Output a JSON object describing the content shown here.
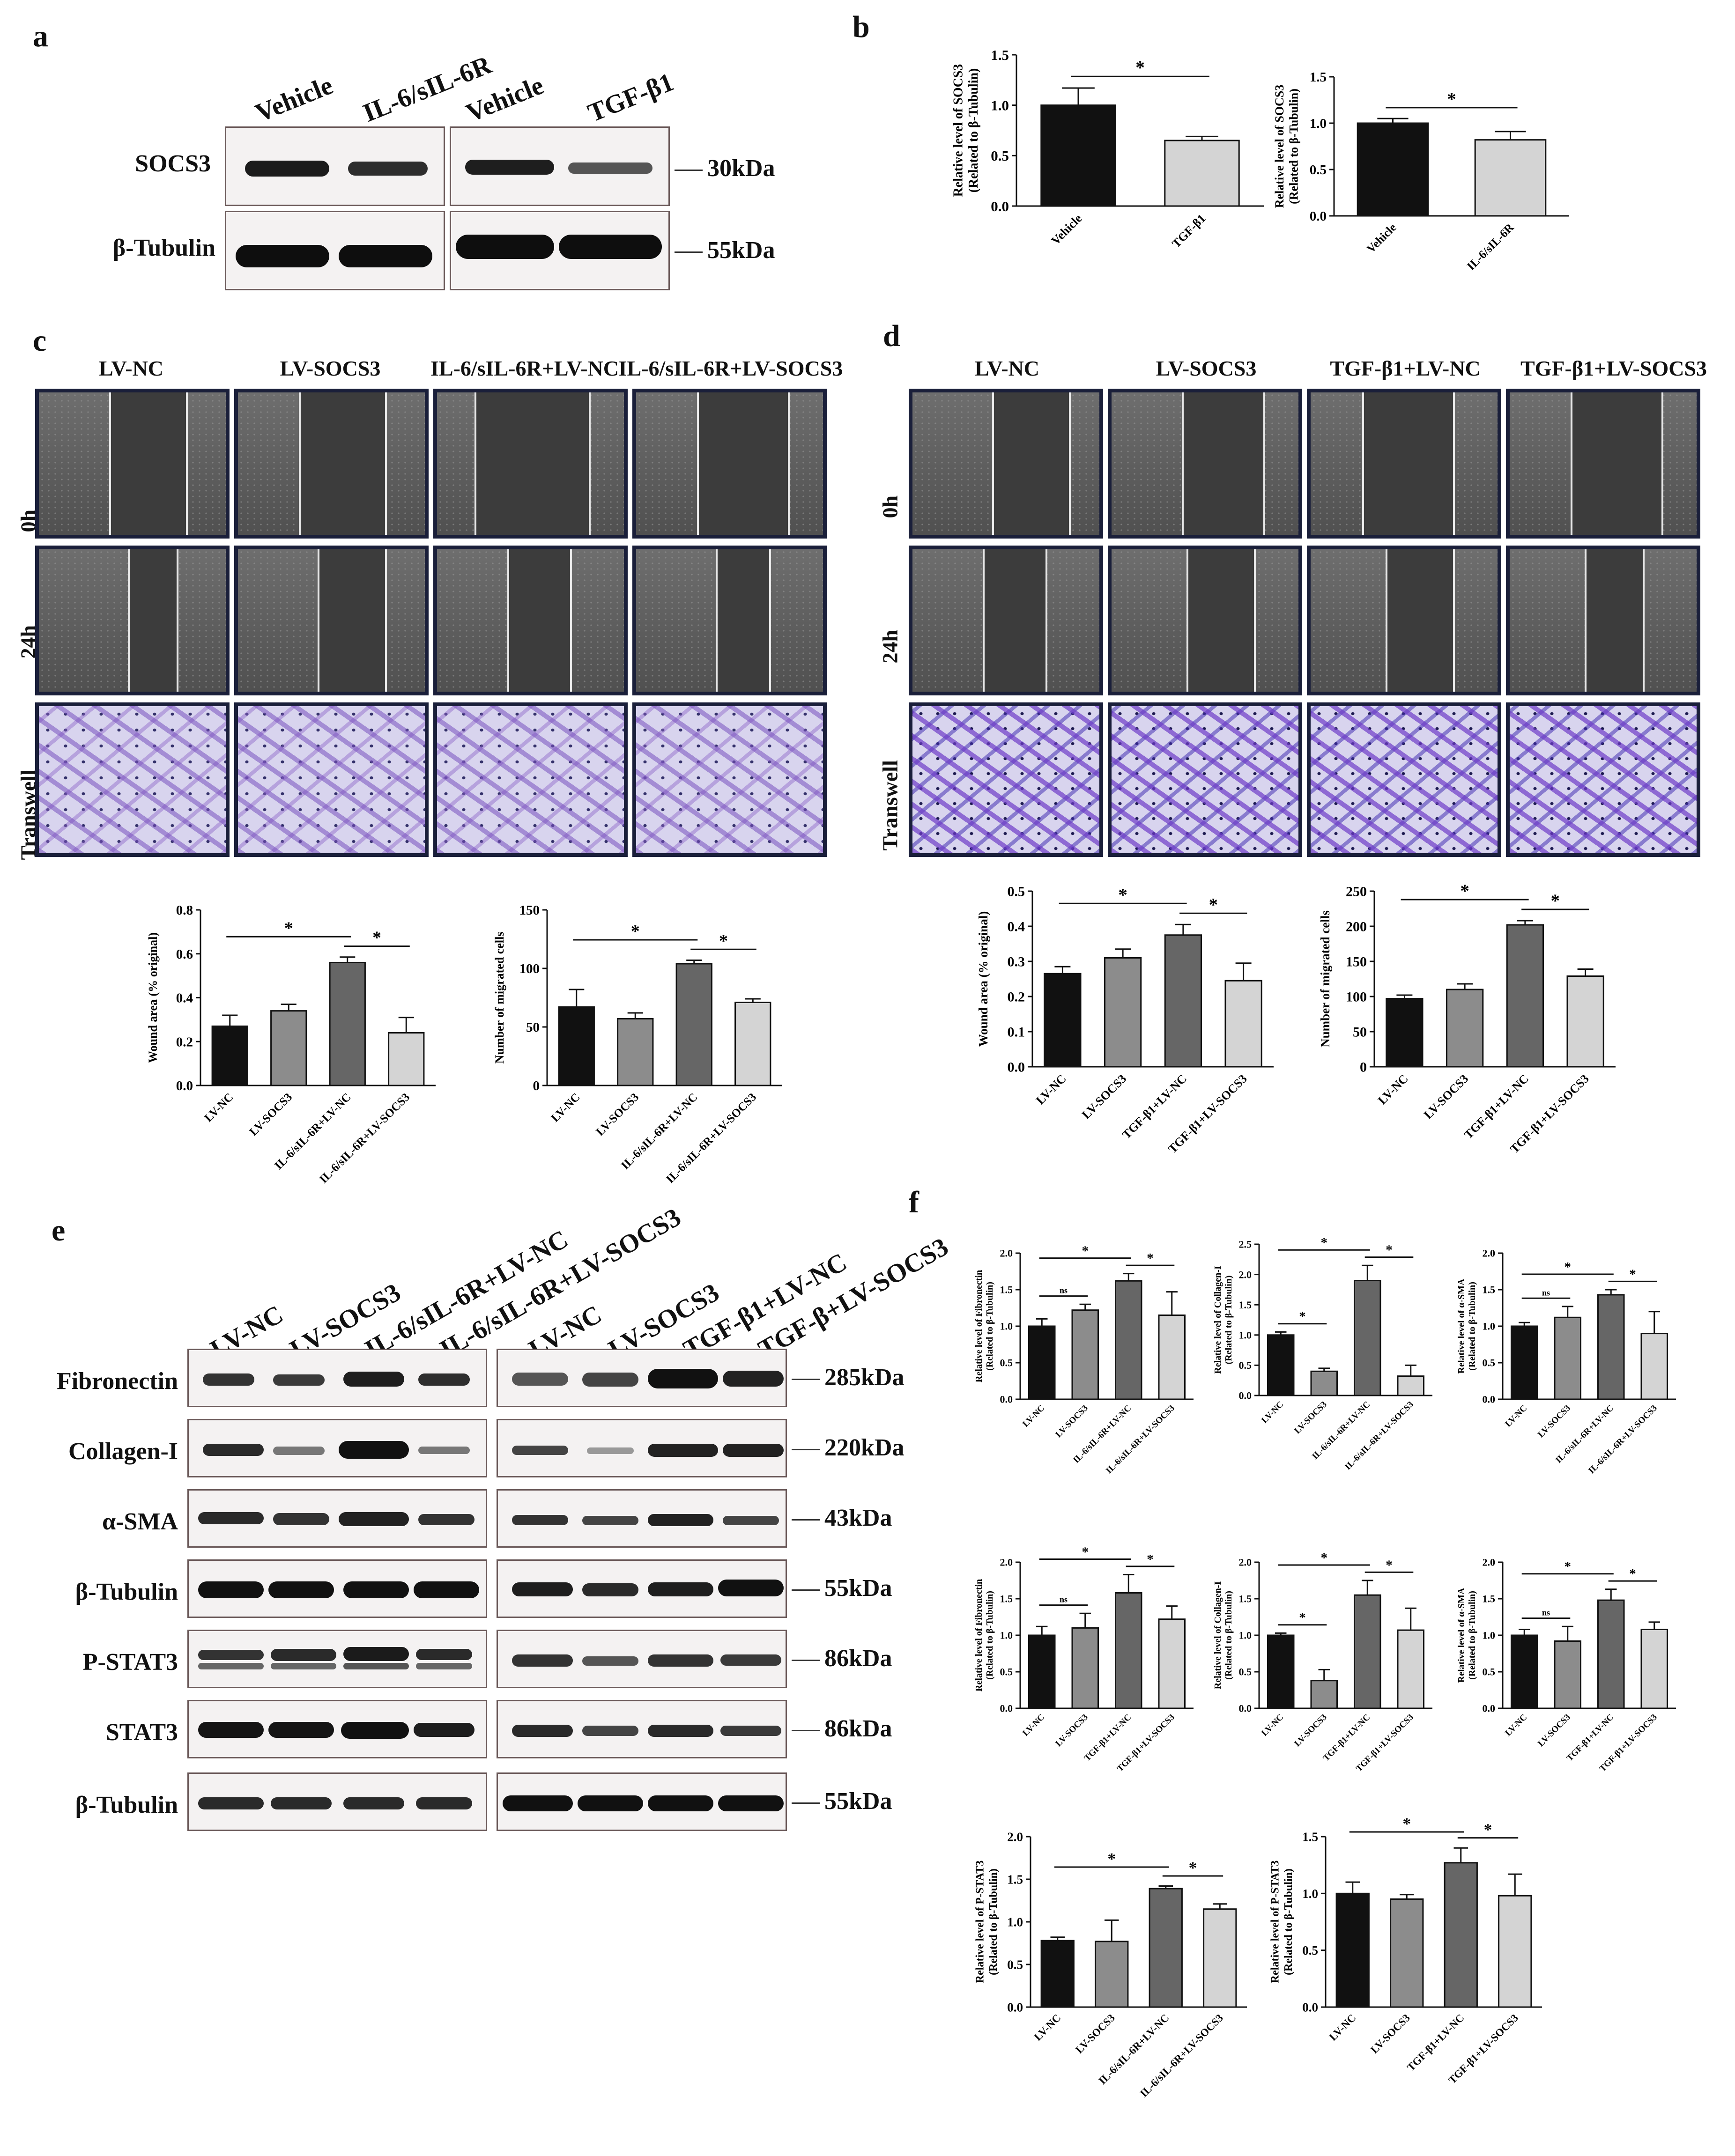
{
  "panels": {
    "a": "a",
    "b": "b",
    "c": "c",
    "d": "d",
    "e": "e",
    "f": "f"
  },
  "blot_a": {
    "lanes": [
      "Vehicle",
      "IL-6/sIL-6R",
      "Vehicle",
      "TGF-β1"
    ],
    "rows": [
      "SOCS3",
      "β-Tubulin"
    ],
    "kda": [
      "30kDa",
      "55kDa"
    ]
  },
  "micro_c": {
    "columns": [
      "LV-NC",
      "LV-SOCS3",
      "IL-6/sIL-6R+LV-NC",
      "IL-6/sIL-6R+LV-SOCS3"
    ],
    "rows": [
      "0h",
      "24h",
      "Transwell"
    ]
  },
  "micro_d": {
    "columns": [
      "LV-NC",
      "LV-SOCS3",
      "TGF-β1+LV-NC",
      "TGF-β1+LV-SOCS3"
    ],
    "rows": [
      "0h",
      "24h",
      "Transwell"
    ]
  },
  "blot_e": {
    "lanes": [
      "LV-NC",
      "LV-SOCS3",
      "IL-6/sIL-6R+LV-NC",
      "IL-6/sIL-6R+LV-SOCS3",
      "LV-NC",
      "LV-SOCS3",
      "TGF-β1+LV-NC",
      "TGF-β+LV-SOCS3"
    ],
    "rows": [
      "Fibronectin",
      "Collagen-I",
      "α-SMA",
      "β-Tubulin",
      "P-STAT3",
      "STAT3",
      "β-Tubulin"
    ],
    "kda": [
      "285kDa",
      "220kDa",
      "43kDa",
      "55kDa",
      "86kDa",
      "86kDa",
      "55kDa"
    ]
  },
  "colors": {
    "black": "#111111",
    "gray": "#8c8c8c",
    "darkgray": "#666666",
    "lightgray": "#d4d4d4"
  },
  "chart_data": [
    {
      "id": "b1",
      "type": "bar",
      "categories": [
        "Vehicle",
        "TGF-β1"
      ],
      "values": [
        1.0,
        0.65
      ],
      "errors": [
        0.17,
        0.04
      ],
      "ylabel": "Relative level of SOCS3\n(Related to β-Tubulin)",
      "ylim": [
        0,
        1.5
      ],
      "yticks": [
        "0.0",
        "0.5",
        "1.0",
        "1.5"
      ],
      "sig": [
        {
          "from": 0,
          "to": 1,
          "label": "*"
        }
      ]
    },
    {
      "id": "b2",
      "type": "bar",
      "categories": [
        "Vehicle",
        "IL-6/sIL-6R"
      ],
      "values": [
        1.0,
        0.82
      ],
      "errors": [
        0.05,
        0.09
      ],
      "ylabel": "Relative level of SOCS3\n(Related to β-Tubulin)",
      "ylim": [
        0,
        1.5
      ],
      "yticks": [
        "0.0",
        "0.5",
        "1.0",
        "1.5"
      ],
      "sig": [
        {
          "from": 0,
          "to": 1,
          "label": "*"
        }
      ]
    },
    {
      "id": "c1",
      "type": "bar",
      "categories": [
        "LV-NC",
        "LV-SOCS3",
        "IL-6/sIL-6R+LV-NC",
        "IL-6/sIL-6R+LV-SOCS3"
      ],
      "values": [
        0.27,
        0.34,
        0.56,
        0.24
      ],
      "errors": [
        0.05,
        0.03,
        0.025,
        0.07
      ],
      "ylabel": "Wound area (% original)",
      "ylim": [
        0,
        0.8
      ],
      "yticks": [
        "0.0",
        "0.2",
        "0.4",
        "0.6",
        "0.8"
      ],
      "sig": [
        {
          "from": 0,
          "to": 2,
          "label": "*"
        },
        {
          "from": 2,
          "to": 3,
          "label": "*"
        }
      ]
    },
    {
      "id": "c2",
      "type": "bar",
      "categories": [
        "LV-NC",
        "LV-SOCS3",
        "IL-6/sIL-6R+LV-NC",
        "IL-6/sIL-6R+LV-SOCS3"
      ],
      "values": [
        67,
        57,
        104,
        71
      ],
      "errors": [
        15,
        5,
        3,
        3
      ],
      "ylabel": "Number of migrated cells",
      "ylim": [
        0,
        150
      ],
      "yticks": [
        "0",
        "50",
        "100",
        "150"
      ],
      "sig": [
        {
          "from": 0,
          "to": 2,
          "label": "*"
        },
        {
          "from": 2,
          "to": 3,
          "label": "*"
        }
      ]
    },
    {
      "id": "d1",
      "type": "bar",
      "categories": [
        "LV-NC",
        "LV-SOCS3",
        "TGF-β1+LV-NC",
        "TGF-β1+LV-SOCS3"
      ],
      "values": [
        0.265,
        0.31,
        0.375,
        0.245
      ],
      "errors": [
        0.02,
        0.025,
        0.03,
        0.05
      ],
      "ylabel": "Wound area (% original)",
      "ylim": [
        0,
        0.5
      ],
      "yticks": [
        "0.0",
        "0.1",
        "0.2",
        "0.3",
        "0.4",
        "0.5"
      ],
      "sig": [
        {
          "from": 0,
          "to": 2,
          "label": "*"
        },
        {
          "from": 2,
          "to": 3,
          "label": "*"
        }
      ]
    },
    {
      "id": "d2",
      "type": "bar",
      "categories": [
        "LV-NC",
        "LV-SOCS3",
        "TGF-β1+LV-NC",
        "TGF-β1+LV-SOCS3"
      ],
      "values": [
        97,
        110,
        202,
        129
      ],
      "errors": [
        5,
        8,
        6,
        10
      ],
      "ylabel": "Number of migrated cells",
      "ylim": [
        0,
        250
      ],
      "yticks": [
        "0",
        "50",
        "100",
        "150",
        "200",
        "250"
      ],
      "sig": [
        {
          "from": 0,
          "to": 2,
          "label": "*"
        },
        {
          "from": 2,
          "to": 3,
          "label": "*"
        }
      ]
    },
    {
      "id": "f1",
      "type": "bar",
      "categories": [
        "LV-NC",
        "LV-SOCS3",
        "IL-6/sIL-6R+LV-NC",
        "IL-6/sIL-6R+LV-SOCS3"
      ],
      "values": [
        1.0,
        1.22,
        1.62,
        1.15
      ],
      "errors": [
        0.1,
        0.08,
        0.1,
        0.32
      ],
      "ylabel": "Relative level of Fibronectin\n(Related to β-Tubulin)",
      "ylim": [
        0,
        2.0
      ],
      "yticks": [
        "0.0",
        "0.5",
        "1.0",
        "1.5",
        "2.0"
      ],
      "sig": [
        {
          "from": 0,
          "to": 1,
          "label": "ns"
        },
        {
          "from": 0,
          "to": 2,
          "label": "*"
        },
        {
          "from": 2,
          "to": 3,
          "label": "*"
        }
      ]
    },
    {
      "id": "f2",
      "type": "bar",
      "categories": [
        "LV-NC",
        "LV-SOCS3",
        "IL-6/sIL-6R+LV-NC",
        "IL-6/sIL-6R+LV-SOCS3"
      ],
      "values": [
        1.0,
        0.4,
        1.9,
        0.32
      ],
      "errors": [
        0.05,
        0.05,
        0.25,
        0.18
      ],
      "ylabel": "Relative level of Collagen-I\n(Related to β-Tubulin)",
      "ylim": [
        0,
        2.5
      ],
      "yticks": [
        "0.0",
        "0.5",
        "1.0",
        "1.5",
        "2.0",
        "2.5"
      ],
      "sig": [
        {
          "from": 0,
          "to": 1,
          "label": "*"
        },
        {
          "from": 0,
          "to": 2,
          "label": "*"
        },
        {
          "from": 2,
          "to": 3,
          "label": "*"
        }
      ]
    },
    {
      "id": "f3",
      "type": "bar",
      "categories": [
        "LV-NC",
        "LV-SOCS3",
        "IL-6/sIL-6R+LV-NC",
        "IL-6/sIL-6R+LV-SOCS3"
      ],
      "values": [
        1.0,
        1.12,
        1.43,
        0.9
      ],
      "errors": [
        0.05,
        0.15,
        0.07,
        0.3
      ],
      "ylabel": "Relative level of α-SMA\n(Related to β-Tubulin)",
      "ylim": [
        0,
        2.0
      ],
      "yticks": [
        "0.0",
        "0.5",
        "1.0",
        "1.5",
        "2.0"
      ],
      "sig": [
        {
          "from": 0,
          "to": 1,
          "label": "ns"
        },
        {
          "from": 0,
          "to": 2,
          "label": "*"
        },
        {
          "from": 2,
          "to": 3,
          "label": "*"
        }
      ]
    },
    {
      "id": "f4",
      "type": "bar",
      "categories": [
        "LV-NC",
        "LV-SOCS3",
        "TGF-β1+LV-NC",
        "TGF-β1+LV-SOCS3"
      ],
      "values": [
        1.0,
        1.1,
        1.58,
        1.22
      ],
      "errors": [
        0.12,
        0.2,
        0.25,
        0.18
      ],
      "ylabel": "Relative level of Fibronectin\n(Related to β-Tubulin)",
      "ylim": [
        0,
        2.0
      ],
      "yticks": [
        "0.0",
        "0.5",
        "1.0",
        "1.5",
        "2.0"
      ],
      "sig": [
        {
          "from": 0,
          "to": 1,
          "label": "ns"
        },
        {
          "from": 0,
          "to": 2,
          "label": "*"
        },
        {
          "from": 2,
          "to": 3,
          "label": "*"
        }
      ]
    },
    {
      "id": "f5",
      "type": "bar",
      "categories": [
        "LV-NC",
        "LV-SOCS3",
        "TGF-β1+LV-NC",
        "TGF-β1+LV-SOCS3"
      ],
      "values": [
        1.0,
        0.38,
        1.55,
        1.07
      ],
      "errors": [
        0.03,
        0.15,
        0.2,
        0.3
      ],
      "ylabel": "Relative level of Collagen-I\n(Related to β-Tubulin)",
      "ylim": [
        0,
        2.0
      ],
      "yticks": [
        "0.0",
        "0.5",
        "1.0",
        "1.5",
        "2.0"
      ],
      "sig": [
        {
          "from": 0,
          "to": 1,
          "label": "*"
        },
        {
          "from": 0,
          "to": 2,
          "label": "*"
        },
        {
          "from": 2,
          "to": 3,
          "label": "*"
        }
      ]
    },
    {
      "id": "f6",
      "type": "bar",
      "categories": [
        "LV-NC",
        "LV-SOCS3",
        "TGF-β1+LV-NC",
        "TGF-β1+LV-SOCS3"
      ],
      "values": [
        1.0,
        0.92,
        1.48,
        1.08
      ],
      "errors": [
        0.08,
        0.2,
        0.15,
        0.1
      ],
      "ylabel": "Relative level of α-SMA\n(Related to β-Tubulin)",
      "ylim": [
        0,
        2.0
      ],
      "yticks": [
        "0.0",
        "0.5",
        "1.0",
        "1.5",
        "2.0"
      ],
      "sig": [
        {
          "from": 0,
          "to": 1,
          "label": "ns"
        },
        {
          "from": 0,
          "to": 2,
          "label": "*"
        },
        {
          "from": 2,
          "to": 3,
          "label": "*"
        }
      ]
    },
    {
      "id": "f7",
      "type": "bar",
      "categories": [
        "LV-NC",
        "LV-SOCS3",
        "IL-6/sIL-6R+LV-NC",
        "IL-6/sIL-6R+LV-SOCS3"
      ],
      "values": [
        0.78,
        0.77,
        1.39,
        1.15
      ],
      "errors": [
        0.04,
        0.25,
        0.03,
        0.06
      ],
      "ylabel": "Relative level of P-STAT3\n(Related to β-Tubulin)",
      "ylim": [
        0,
        2.0
      ],
      "yticks": [
        "0.0",
        "0.5",
        "1.0",
        "1.5",
        "2.0"
      ],
      "sig": [
        {
          "from": 0,
          "to": 2,
          "label": "*"
        },
        {
          "from": 2,
          "to": 3,
          "label": "*"
        }
      ]
    },
    {
      "id": "f8",
      "type": "bar",
      "categories": [
        "LV-NC",
        "LV-SOCS3",
        "TGF-β1+LV-NC",
        "TGF-β1+LV-SOCS3"
      ],
      "values": [
        1.0,
        0.95,
        1.27,
        0.98
      ],
      "errors": [
        0.1,
        0.04,
        0.13,
        0.19
      ],
      "ylabel": "Relative level of P-STAT3\n(Related to β-Tubulin)",
      "ylim": [
        0,
        1.5
      ],
      "yticks": [
        "0.0",
        "0.5",
        "1.0",
        "1.5"
      ],
      "sig": [
        {
          "from": 0,
          "to": 2,
          "label": "*"
        },
        {
          "from": 2,
          "to": 3,
          "label": "*"
        }
      ]
    }
  ]
}
